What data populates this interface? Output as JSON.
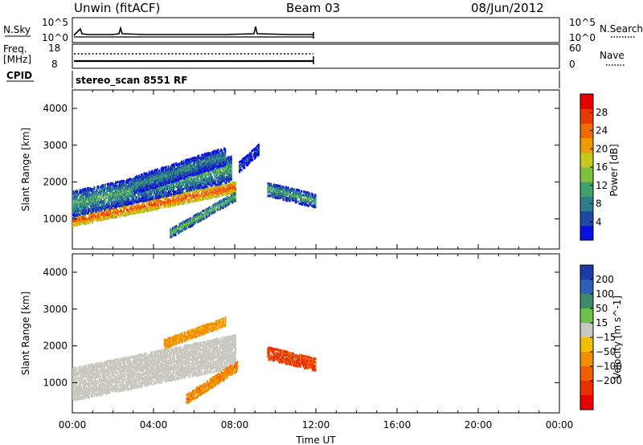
{
  "header": {
    "station": "Unwin (fitACF)",
    "beam": "Beam 03",
    "date": "08/Jun/2012"
  },
  "panels": {
    "nsky_label": "N.Sky",
    "nsearch_label": "N.Search",
    "freq_label": "Freq.",
    "freq_unit": "[MHz]",
    "nave_label": "Nave",
    "cpid_label": "CPID",
    "cpid_text": "stereo_scan 8551 RF",
    "nsky_ticks": [
      "10^5",
      "10^0"
    ],
    "nsky_ticks_right": [
      "10^5",
      "10^0"
    ],
    "freq_ticks": [
      "18",
      "8"
    ],
    "nave_ticks": [
      "60",
      "0"
    ]
  },
  "chart_data": [
    {
      "type": "heatmap",
      "name": "power-panel",
      "ylabel": "Slant Range [km]",
      "xlabel": "",
      "colorbar_label": "Power [dB]",
      "xlim": [
        0,
        24
      ],
      "ylim": [
        180,
        4500
      ],
      "yticks": [
        1000,
        2000,
        3000,
        4000
      ],
      "colorbar_ticks": [
        4,
        8,
        12,
        16,
        20,
        24,
        28
      ],
      "colorbar_range": [
        0,
        32
      ],
      "colorbar_colors": [
        "#0a10e0",
        "#1e4aa6",
        "#2f7d8c",
        "#3fa070",
        "#7cc23c",
        "#c6c61c",
        "#ef9a00",
        "#ef6a00",
        "#e83a00",
        "#e80000"
      ],
      "regions": [
        {
          "t0": 0.0,
          "t1": 8.0,
          "r_start": 950,
          "r_end": 1850,
          "width": 320,
          "value": 26
        },
        {
          "t0": 0.0,
          "t1": 7.8,
          "r_start": 1400,
          "r_end": 2350,
          "width": 700,
          "value": 12
        },
        {
          "t0": 3.0,
          "t1": 7.5,
          "r_start": 1900,
          "r_end": 2700,
          "width": 500,
          "value": 10
        },
        {
          "t0": 4.8,
          "t1": 8.0,
          "r_start": 600,
          "r_end": 1600,
          "width": 250,
          "value": 14
        },
        {
          "t0": 9.6,
          "t1": 12.0,
          "r_start": 1800,
          "r_end": 1480,
          "width": 380,
          "value": 12
        },
        {
          "t0": 8.2,
          "t1": 9.2,
          "r_start": 2400,
          "r_end": 2900,
          "width": 300,
          "value": 6
        }
      ]
    },
    {
      "type": "heatmap",
      "name": "velocity-panel",
      "ylabel": "Slant Range [km]",
      "xlabel": "Time UT",
      "colorbar_label": "Velocity [m s^-1]",
      "xlim": [
        0,
        24
      ],
      "ylim": [
        180,
        4500
      ],
      "yticks": [
        1000,
        2000,
        3000,
        4000
      ],
      "xticks": [
        "00:00",
        "04:00",
        "08:00",
        "12:00",
        "16:00",
        "20:00",
        "00:00"
      ],
      "colorbar_ticks": [
        "200",
        "100",
        "50",
        "15",
        "−15",
        "−50",
        "−100",
        "−200"
      ],
      "colorbar_colors": [
        "#1e3aa6",
        "#2f5fb8",
        "#3f8a6a",
        "#6ac24a",
        "#c8c8c0",
        "#f0c000",
        "#f09000",
        "#f06000",
        "#e83000",
        "#e80000"
      ],
      "regions": [
        {
          "t0": 0.0,
          "t1": 8.0,
          "r_start": 950,
          "r_end": 1850,
          "width": 900,
          "value": -5
        },
        {
          "t0": 4.5,
          "t1": 7.5,
          "r_start": 2050,
          "r_end": 2650,
          "width": 250,
          "value": -60
        },
        {
          "t0": 5.6,
          "t1": 8.1,
          "r_start": 550,
          "r_end": 1450,
          "width": 280,
          "value": -90
        },
        {
          "t0": 9.6,
          "t1": 12.0,
          "r_start": 1800,
          "r_end": 1480,
          "width": 350,
          "value": -220
        }
      ]
    }
  ]
}
